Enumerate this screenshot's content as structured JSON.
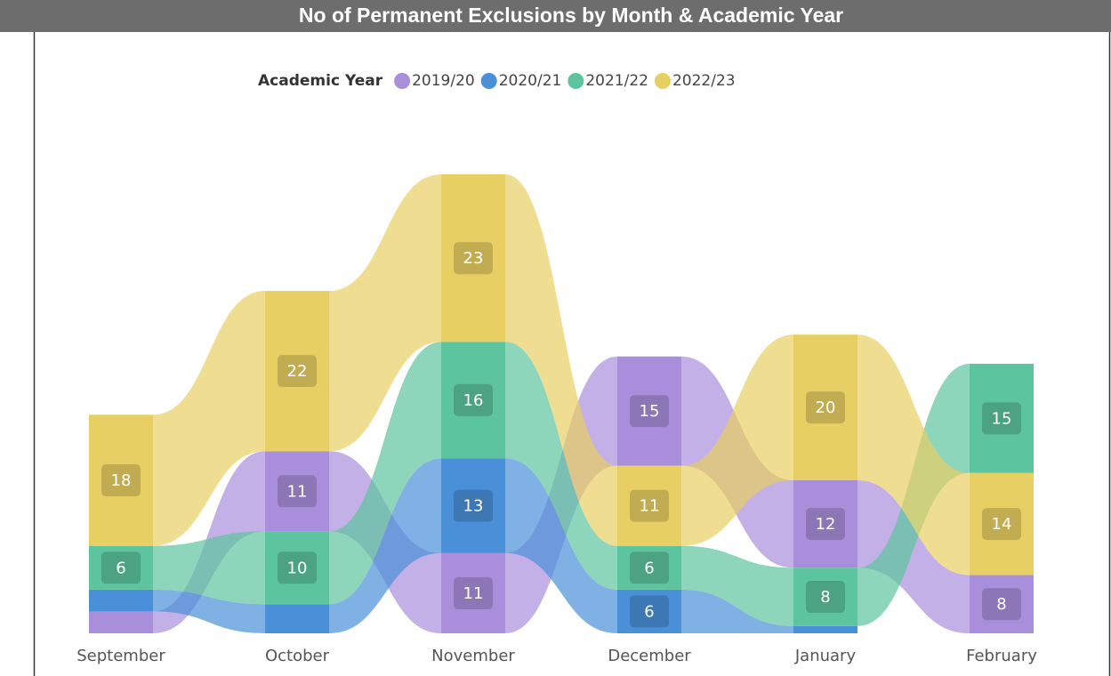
{
  "chart_data": {
    "type": "ribbon",
    "title": "No of Permanent Exclusions by Month & Academic Year",
    "legend_title": "Academic Year",
    "categories": [
      "September",
      "October",
      "November",
      "December",
      "January",
      "February"
    ],
    "series": [
      {
        "name": "2019/20",
        "color": "#a98fdb",
        "values": [
          3,
          11,
          11,
          15,
          12,
          8
        ]
      },
      {
        "name": "2020/21",
        "color": "#4a90d9",
        "values": [
          3,
          4,
          13,
          6,
          1,
          null
        ]
      },
      {
        "name": "2021/22",
        "color": "#5cc49e",
        "values": [
          6,
          10,
          16,
          6,
          8,
          15
        ]
      },
      {
        "name": "2022/23",
        "color": "#e8cf63",
        "values": [
          18,
          22,
          23,
          11,
          20,
          14
        ]
      }
    ]
  }
}
